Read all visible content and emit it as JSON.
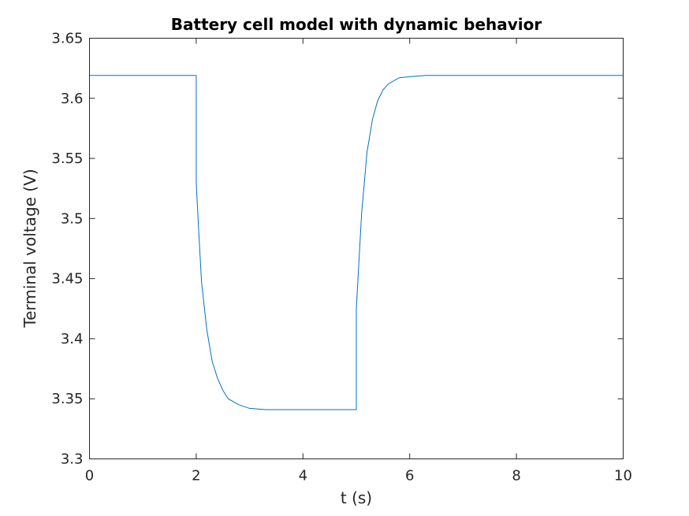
{
  "chart_data": {
    "type": "line",
    "title": "Battery cell model with dynamic behavior",
    "xlabel": "t (s)",
    "ylabel": "Terminal voltage (V)",
    "xlim": [
      0,
      10
    ],
    "ylim": [
      3.3,
      3.65
    ],
    "xticks": [
      0,
      2,
      4,
      6,
      8,
      10
    ],
    "xtick_labels": [
      "0",
      "2",
      "4",
      "6",
      "8",
      "10"
    ],
    "yticks": [
      3.3,
      3.35,
      3.4,
      3.45,
      3.5,
      3.55,
      3.6,
      3.65
    ],
    "ytick_labels": [
      "3.3",
      "3.35",
      "3.4",
      "3.45",
      "3.5",
      "3.55",
      "3.6",
      "3.65"
    ],
    "grid": false,
    "line_color": "#0072BD",
    "series": [
      {
        "x": [
          0,
          2,
          2,
          2.05,
          2.1,
          2.2,
          2.3,
          2.4,
          2.5,
          2.6,
          2.8,
          3.0,
          3.3,
          3.6,
          4.0,
          4.5,
          5,
          5,
          5.05,
          5.1,
          5.2,
          5.3,
          5.4,
          5.5,
          5.6,
          5.8,
          6.0,
          6.3,
          6.6,
          7.0,
          8.0,
          9.0,
          10
        ],
        "y": [
          3.619,
          3.619,
          3.53,
          3.487,
          3.447,
          3.407,
          3.381,
          3.367,
          3.357,
          3.35,
          3.345,
          3.342,
          3.341,
          3.341,
          3.341,
          3.341,
          3.341,
          3.425,
          3.465,
          3.505,
          3.555,
          3.582,
          3.598,
          3.607,
          3.612,
          3.617,
          3.618,
          3.619,
          3.619,
          3.619,
          3.619,
          3.619,
          3.619
        ]
      }
    ]
  }
}
